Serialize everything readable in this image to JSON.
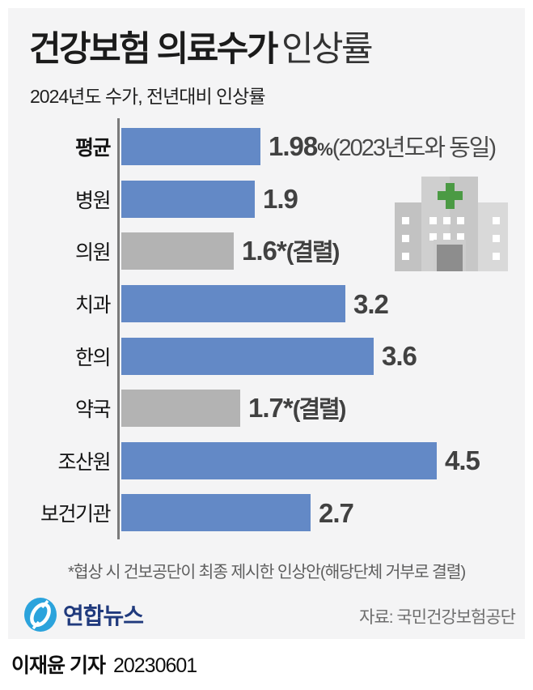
{
  "header": {
    "title_strong": "건강보험 의료수가",
    "title_light": "인상률",
    "subtitle": "2024년도 수가, 전년대비 인상률"
  },
  "chart_data": {
    "type": "bar",
    "orientation": "horizontal",
    "title": "건강보험 의료수가 인상률",
    "subtitle": "2024년도 수가, 전년대비 인상률",
    "unit": "%",
    "xlim": [
      0,
      4.5
    ],
    "grid": false,
    "legend": "none",
    "categories": [
      "평균",
      "병원",
      "의원",
      "치과",
      "한의",
      "약국",
      "조산원",
      "보건기관"
    ],
    "values": [
      1.98,
      1.9,
      1.6,
      3.2,
      3.6,
      1.7,
      4.5,
      2.7
    ],
    "rows": [
      {
        "label": "평균",
        "value": 1.98,
        "display": "1.98",
        "unit": "%",
        "note": "(2023년도와 동일)",
        "note_style": "light",
        "bar": "blue",
        "label_bold": true
      },
      {
        "label": "병원",
        "value": 1.9,
        "display": "1.9",
        "bar": "blue"
      },
      {
        "label": "의원",
        "value": 1.6,
        "display": "1.6*",
        "note": "(결렬)",
        "note_style": "bold",
        "bar": "gray"
      },
      {
        "label": "치과",
        "value": 3.2,
        "display": "3.2",
        "bar": "blue"
      },
      {
        "label": "한의",
        "value": 3.6,
        "display": "3.6",
        "bar": "blue"
      },
      {
        "label": "약국",
        "value": 1.7,
        "display": "1.7*",
        "note": "(결렬)",
        "note_style": "bold",
        "bar": "gray"
      },
      {
        "label": "조산원",
        "value": 4.5,
        "display": "4.5",
        "bar": "blue"
      },
      {
        "label": "보건기관",
        "value": 2.7,
        "display": "2.7",
        "bar": "blue"
      }
    ],
    "colors": {
      "blue": "#6389c6",
      "gray": "#b3b3b3",
      "axis": "#7a7a7a",
      "value_text": "#414141",
      "panel_bg": "#f4f4f5"
    }
  },
  "footnote": "*협상 시 건보공단이 최종 제시한 인상안(해당단체 거부로 결렬)",
  "footer": {
    "logo_text": "연합뉴스",
    "source": "자료: 국민건강보험공단"
  },
  "byline": {
    "reporter": "이재윤 기자",
    "date": "20230601"
  },
  "icons": {
    "hospital": "hospital-icon",
    "logo": "yonhap-logo-icon",
    "cross_color": "#4b9a44",
    "logo_blue": "#2ba3dc",
    "logo_navy": "#203a7d"
  }
}
